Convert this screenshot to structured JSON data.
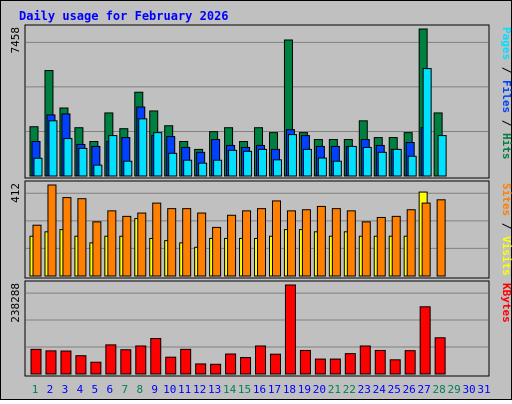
{
  "chart_data": {
    "type": "bar",
    "title": "Daily usage for February 2026",
    "colors": {
      "background": "#C0C0C0",
      "plot_bg": "#C0C0C0",
      "grid": "#808080",
      "title": "#0000FF",
      "hits": "#008040",
      "files": "#0040FF",
      "pages": "#00E0FF",
      "visits": "#FFFF00",
      "sites": "#FF8000",
      "kbytes": "#FF0000",
      "weekend_label": "#00805C",
      "weekday_label": "#0000FF"
    },
    "days": [
      1,
      2,
      3,
      4,
      5,
      6,
      7,
      8,
      9,
      10,
      11,
      12,
      13,
      14,
      15,
      16,
      17,
      18,
      19,
      20,
      21,
      22,
      23,
      24,
      25,
      26,
      27,
      28,
      29,
      30,
      31
    ],
    "weekend_days": [
      1,
      7,
      8,
      14,
      15,
      21,
      22,
      28,
      29
    ],
    "panels": [
      {
        "id": "requests",
        "max_label": "7458",
        "ymax": 7458,
        "right_label_parts": [
          {
            "text": "Pages",
            "color": "#00E0FF"
          },
          {
            "text": " / ",
            "color": "#000000"
          },
          {
            "text": "Files",
            "color": "#0040FF"
          },
          {
            "text": " / ",
            "color": "#000000"
          },
          {
            "text": "Hits",
            "color": "#008040"
          }
        ],
        "series": [
          {
            "name": "Hits",
            "values": [
              2500,
              5350,
              3450,
              2450,
              1750,
              3200,
              2400,
              4250,
              3300,
              2550,
              1750,
              1350,
              2250,
              2450,
              1750,
              2450,
              2200,
              6900,
              2200,
              1850,
              1850,
              1850,
              2800,
              1950,
              1950,
              2200,
              7458,
              3200,
              0,
              0,
              0
            ]
          },
          {
            "name": "Files",
            "values": [
              1750,
              3100,
              3150,
              1600,
              1500,
              1750,
              1950,
              3500,
              2050,
              2000,
              1450,
              1200,
              1850,
              1550,
              1450,
              1550,
              1350,
              2350,
              2050,
              1500,
              1500,
              1500,
              1850,
              1550,
              1350,
              1700,
              2450,
              0,
              0,
              0,
              0
            ]
          },
          {
            "name": "Pages",
            "values": [
              900,
              2800,
              1900,
              1400,
              550,
              2050,
              750,
              2900,
              2200,
              1150,
              800,
              650,
              800,
              1300,
              1250,
              1350,
              820,
              2100,
              1350,
              910,
              750,
              1500,
              1450,
              1200,
              1350,
              1000,
              5450,
              2050,
              0,
              0,
              0
            ]
          }
        ]
      },
      {
        "id": "visitors",
        "max_label": "412",
        "ymax": 412,
        "right_label_parts": [
          {
            "text": "Sites",
            "color": "#FF8000"
          },
          {
            "text": " / ",
            "color": "#000000"
          },
          {
            "text": "Visits",
            "color": "#FFFF00"
          }
        ],
        "series": [
          {
            "name": "Visits",
            "values": [
              180,
              200,
              210,
              180,
              150,
              180,
              180,
              260,
              170,
              160,
              150,
              130,
              170,
              170,
              170,
              170,
              180,
              210,
              210,
              200,
              180,
              200,
              180,
              180,
              180,
              180,
              380,
              0,
              0,
              0,
              0
            ]
          },
          {
            "name": "Sites",
            "values": [
              230,
              412,
              355,
              350,
              245,
              295,
              270,
              285,
              330,
              305,
              305,
              285,
              220,
              275,
              295,
              305,
              340,
              295,
              300,
              315,
              305,
              295,
              245,
              265,
              270,
              300,
              330,
              345,
              0,
              0,
              0
            ]
          }
        ]
      },
      {
        "id": "kbytes",
        "max_label": "238288",
        "ymax": 238288,
        "right_label_parts": [
          {
            "text": "KBytes",
            "color": "#FF0000"
          }
        ],
        "series": [
          {
            "name": "KBytes",
            "values": [
              66000,
              62000,
              61500,
              49000,
              31500,
              78000,
              65000,
              75000,
              95000,
              45000,
              66000,
              27000,
              26000,
              53500,
              44000,
              75000,
              53000,
              238288,
              63000,
              40000,
              40000,
              54500,
              75000,
              63000,
              38000,
              62500,
              180000,
              97000,
              0,
              0,
              0
            ]
          }
        ]
      }
    ]
  }
}
